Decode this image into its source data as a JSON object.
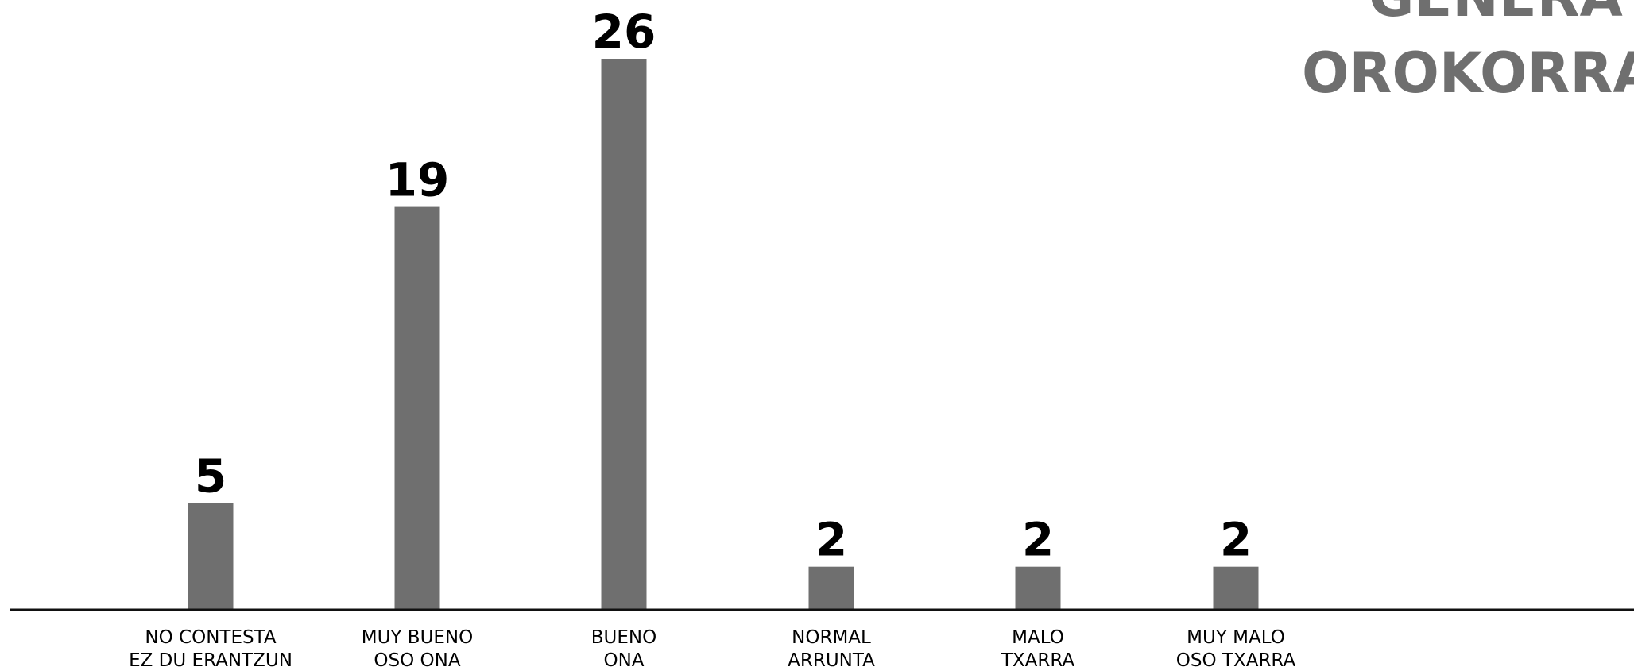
{
  "chart_data": {
    "type": "bar",
    "title_lines": [
      "GENERA",
      "OROKORRA"
    ],
    "categories": [
      [
        "NO CONTESTA",
        "EZ DU ERANTZUN"
      ],
      [
        "MUY BUENO",
        "OSO ONA"
      ],
      [
        "BUENO",
        "ONA"
      ],
      [
        "NORMAL",
        "ARRUNTA"
      ],
      [
        "MALO",
        "TXARRA"
      ],
      [
        "MUY MALO",
        "OSO TXARRA"
      ]
    ],
    "values": [
      5,
      19,
      26,
      2,
      2,
      2
    ],
    "ylim": [
      0,
      26
    ],
    "grid": false,
    "legend": "none",
    "colors": {
      "bar": "#6f6f6f",
      "axis": "#111111",
      "value_label": "#000000",
      "title": "#6f6f6f"
    }
  }
}
